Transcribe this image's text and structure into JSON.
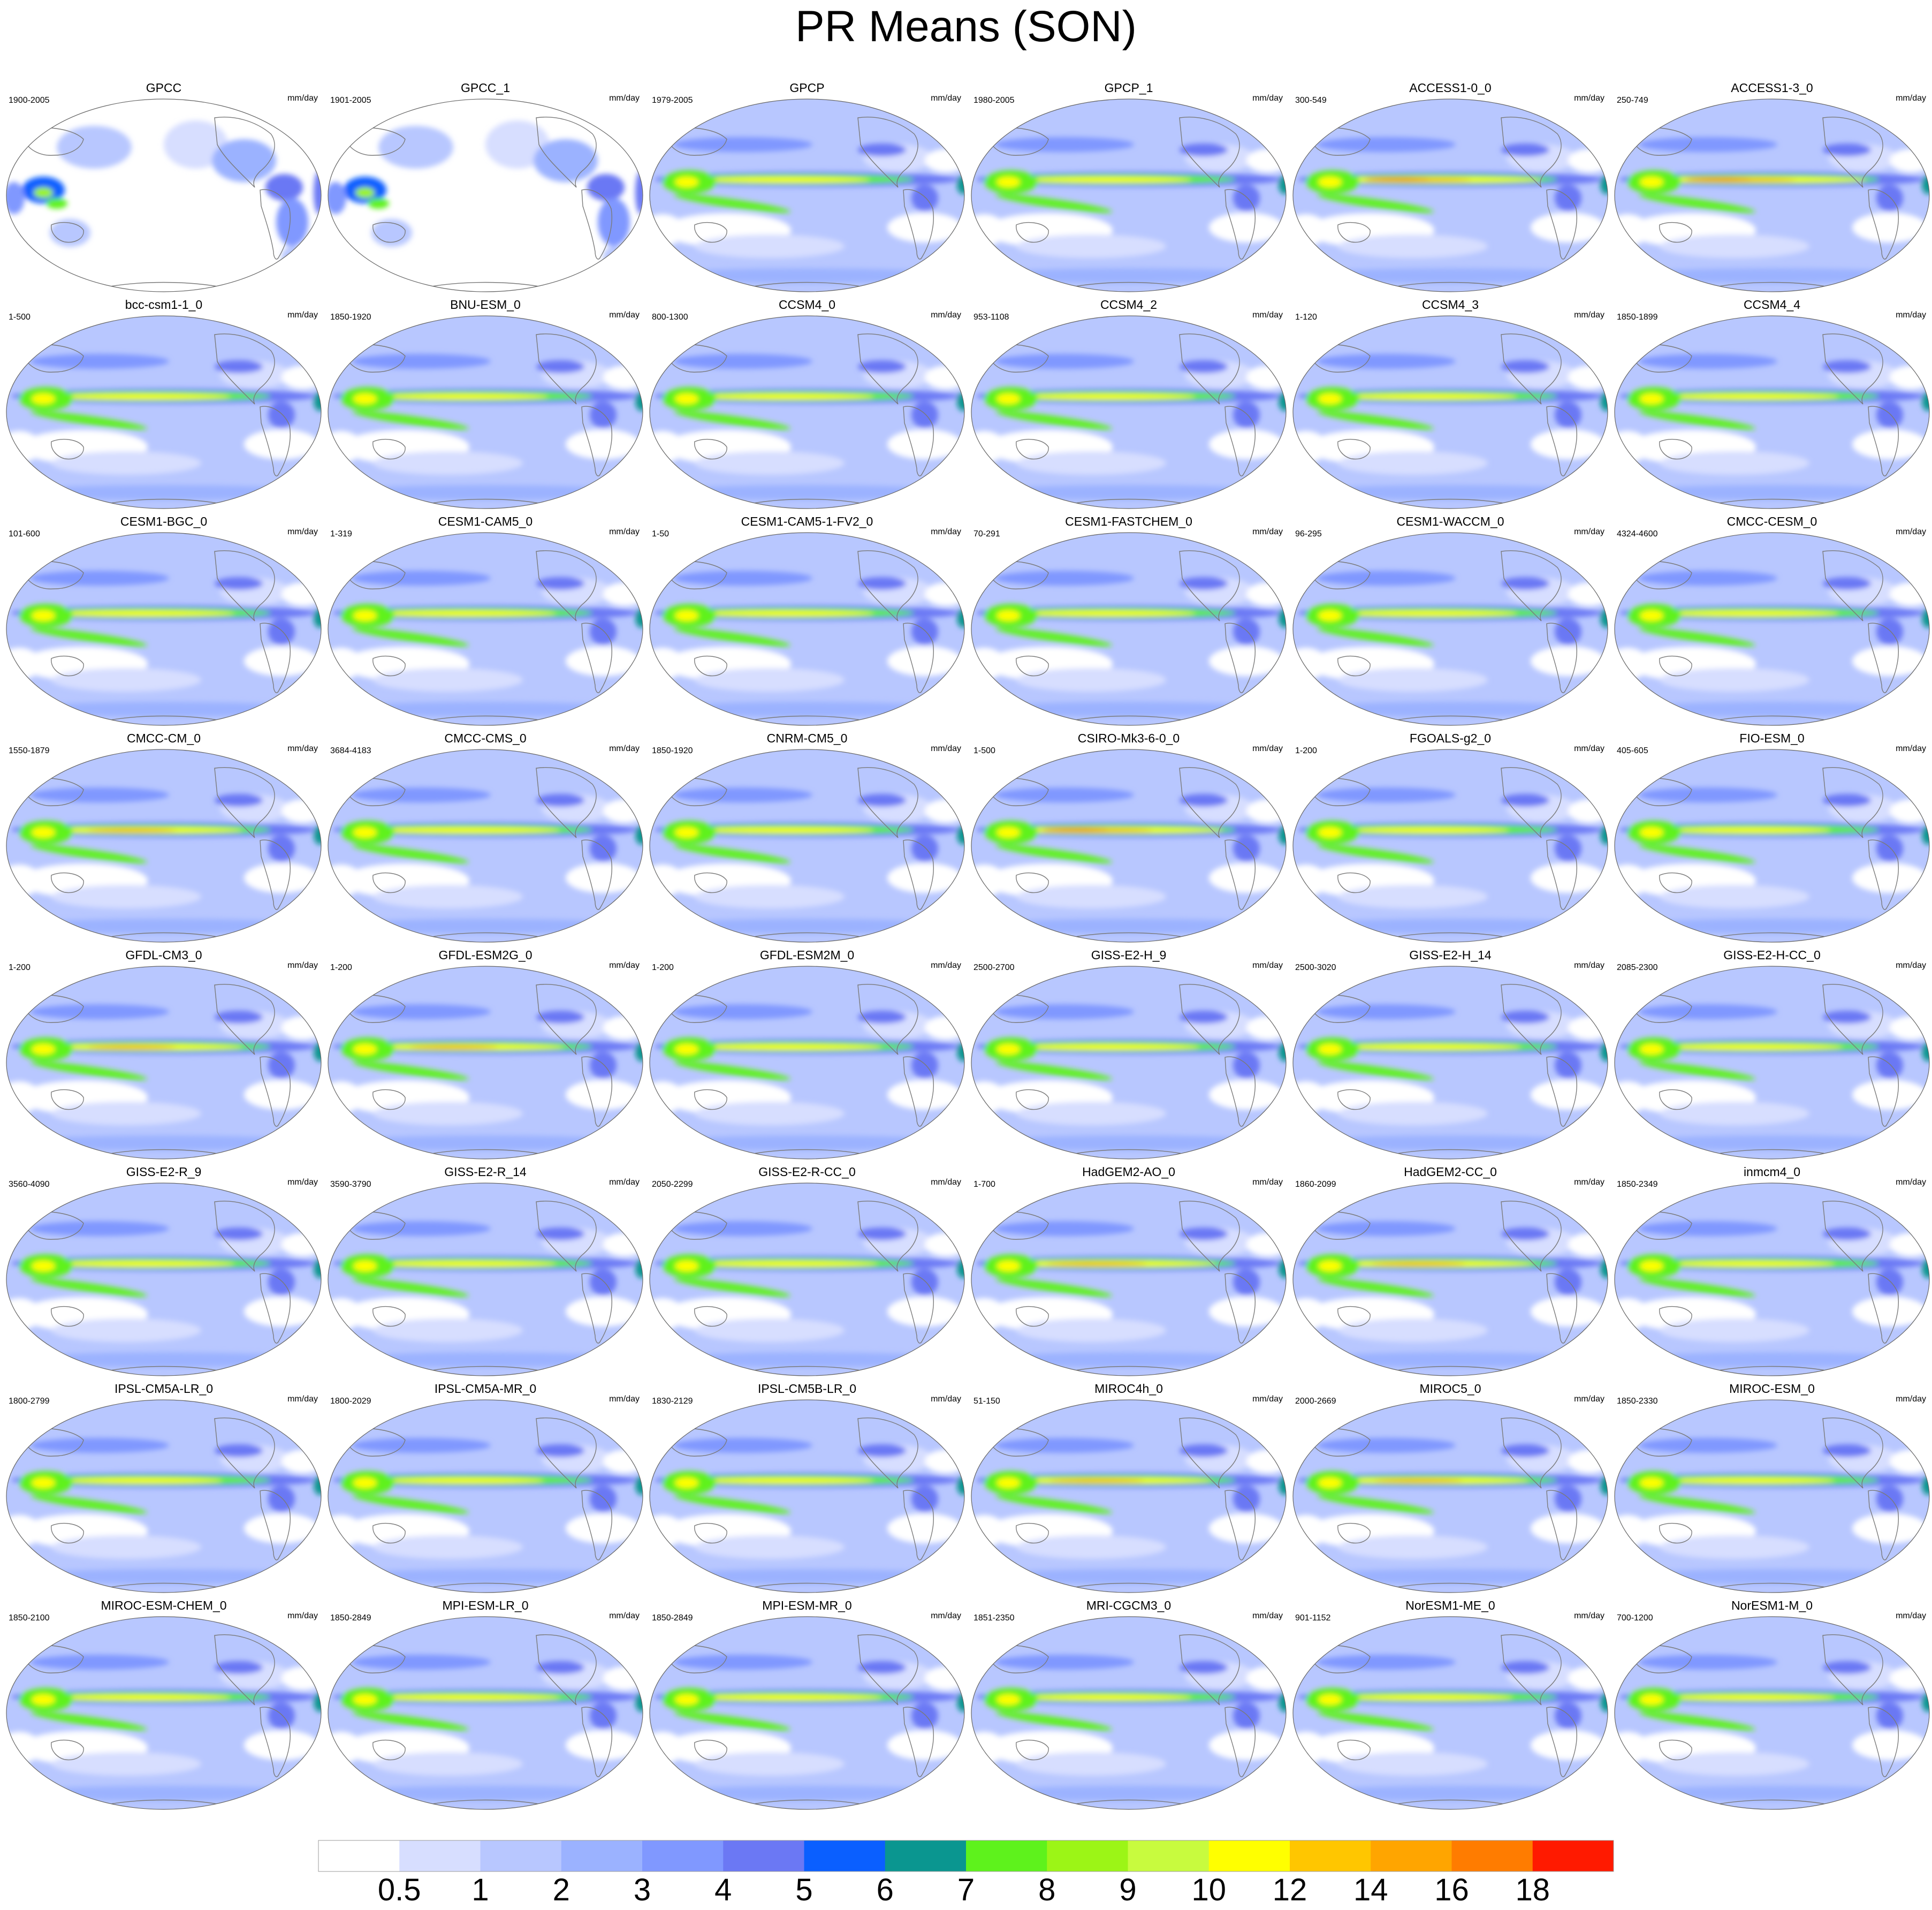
{
  "title": "PR Means (SON)",
  "units": "mm/day",
  "panels": [
    {
      "name": "GPCC",
      "period": "1900-2005",
      "itcz": 0,
      "land_only": true
    },
    {
      "name": "GPCC_1",
      "period": "1901-2005",
      "itcz": 0,
      "land_only": true
    },
    {
      "name": "GPCP",
      "period": "1979-2005",
      "itcz": 0.55
    },
    {
      "name": "GPCP_1",
      "period": "1980-2005",
      "itcz": 0.55
    },
    {
      "name": "ACCESS1-0_0",
      "period": "300-549",
      "itcz": 0.9
    },
    {
      "name": "ACCESS1-3_0",
      "period": "250-749",
      "itcz": 0.95
    },
    {
      "name": "bcc-csm1-1_0",
      "period": "1-500",
      "itcz": 0.6
    },
    {
      "name": "BNU-ESM_0",
      "period": "1850-1920",
      "itcz": 0.55
    },
    {
      "name": "CCSM4_0",
      "period": "800-1300",
      "itcz": 0.6
    },
    {
      "name": "CCSM4_2",
      "period": "953-1108",
      "itcz": 0.6
    },
    {
      "name": "CCSM4_3",
      "period": "1-120",
      "itcz": 0.6
    },
    {
      "name": "CCSM4_4",
      "period": "1850-1899",
      "itcz": 0.6
    },
    {
      "name": "CESM1-BGC_0",
      "period": "101-600",
      "itcz": 0.65
    },
    {
      "name": "CESM1-CAM5_0",
      "period": "1-319",
      "itcz": 0.65
    },
    {
      "name": "CESM1-CAM5-1-FV2_0",
      "period": "1-50",
      "itcz": 0.6
    },
    {
      "name": "CESM1-FASTCHEM_0",
      "period": "70-291",
      "itcz": 0.6
    },
    {
      "name": "CESM1-WACCM_0",
      "period": "96-295",
      "itcz": 0.6
    },
    {
      "name": "CMCC-CESM_0",
      "period": "4324-4600",
      "itcz": 0.6
    },
    {
      "name": "CMCC-CM_0",
      "period": "1550-1879",
      "itcz": 0.75
    },
    {
      "name": "CMCC-CMS_0",
      "period": "3684-4183",
      "itcz": 0.7
    },
    {
      "name": "CNRM-CM5_0",
      "period": "1850-1920",
      "itcz": 0.6
    },
    {
      "name": "CSIRO-Mk3-6-0_0",
      "period": "1-500",
      "itcz": 0.95
    },
    {
      "name": "FGOALS-g2_0",
      "period": "1-200",
      "itcz": 0.5
    },
    {
      "name": "FIO-ESM_0",
      "period": "405-605",
      "itcz": 0.5
    },
    {
      "name": "GFDL-CM3_0",
      "period": "1-200",
      "itcz": 0.75
    },
    {
      "name": "GFDL-ESM2G_0",
      "period": "1-200",
      "itcz": 0.75
    },
    {
      "name": "GFDL-ESM2M_0",
      "period": "1-200",
      "itcz": 0.7
    },
    {
      "name": "GISS-E2-H_9",
      "period": "2500-2700",
      "itcz": 0.65
    },
    {
      "name": "GISS-E2-H_14",
      "period": "2500-3020",
      "itcz": 0.65
    },
    {
      "name": "GISS-E2-H-CC_0",
      "period": "2085-2300",
      "itcz": 0.65
    },
    {
      "name": "GISS-E2-R_9",
      "period": "3560-4090",
      "itcz": 0.65
    },
    {
      "name": "GISS-E2-R_14",
      "period": "3590-3790",
      "itcz": 0.65
    },
    {
      "name": "GISS-E2-R-CC_0",
      "period": "2050-2299",
      "itcz": 0.65
    },
    {
      "name": "HadGEM2-AO_0",
      "period": "1-700",
      "itcz": 0.85
    },
    {
      "name": "HadGEM2-CC_0",
      "period": "1860-2099",
      "itcz": 0.8
    },
    {
      "name": "inmcm4_0",
      "period": "1850-2349",
      "itcz": 0.55
    },
    {
      "name": "IPSL-CM5A-LR_0",
      "period": "1800-2799",
      "itcz": 0.5
    },
    {
      "name": "IPSL-CM5A-MR_0",
      "period": "1800-2029",
      "itcz": 0.5
    },
    {
      "name": "IPSL-CM5B-LR_0",
      "period": "1830-2129",
      "itcz": 0.6
    },
    {
      "name": "MIROC4h_0",
      "period": "51-150",
      "itcz": 0.8
    },
    {
      "name": "MIROC5_0",
      "period": "2000-2669",
      "itcz": 0.75
    },
    {
      "name": "MIROC-ESM_0",
      "period": "1850-2330",
      "itcz": 0.55
    },
    {
      "name": "MIROC-ESM-CHEM_0",
      "period": "1850-2100",
      "itcz": 0.6
    },
    {
      "name": "MPI-ESM-LR_0",
      "period": "1850-2849",
      "itcz": 0.7
    },
    {
      "name": "MPI-ESM-MR_0",
      "period": "1850-2849",
      "itcz": 0.7
    },
    {
      "name": "MRI-CGCM3_0",
      "period": "1851-2350",
      "itcz": 0.55
    },
    {
      "name": "NorESM1-ME_0",
      "period": "901-1152",
      "itcz": 0.55
    },
    {
      "name": "NorESM1-M_0",
      "period": "700-1200",
      "itcz": 0.55
    }
  ],
  "colorbar": {
    "labels": [
      "0.5",
      "1",
      "2",
      "3",
      "4",
      "5",
      "6",
      "7",
      "8",
      "9",
      "10",
      "12",
      "14",
      "16",
      "18"
    ],
    "colors": [
      "#ffffff",
      "#d7deff",
      "#b8c7ff",
      "#9bb2ff",
      "#8098ff",
      "#6b78f4",
      "#0a5fff",
      "#0a9690",
      "#5ef21c",
      "#9cf516",
      "#c8fb3e",
      "#ffff00",
      "#ffc600",
      "#ffa500",
      "#ff7c00",
      "#ff1a00"
    ]
  }
}
